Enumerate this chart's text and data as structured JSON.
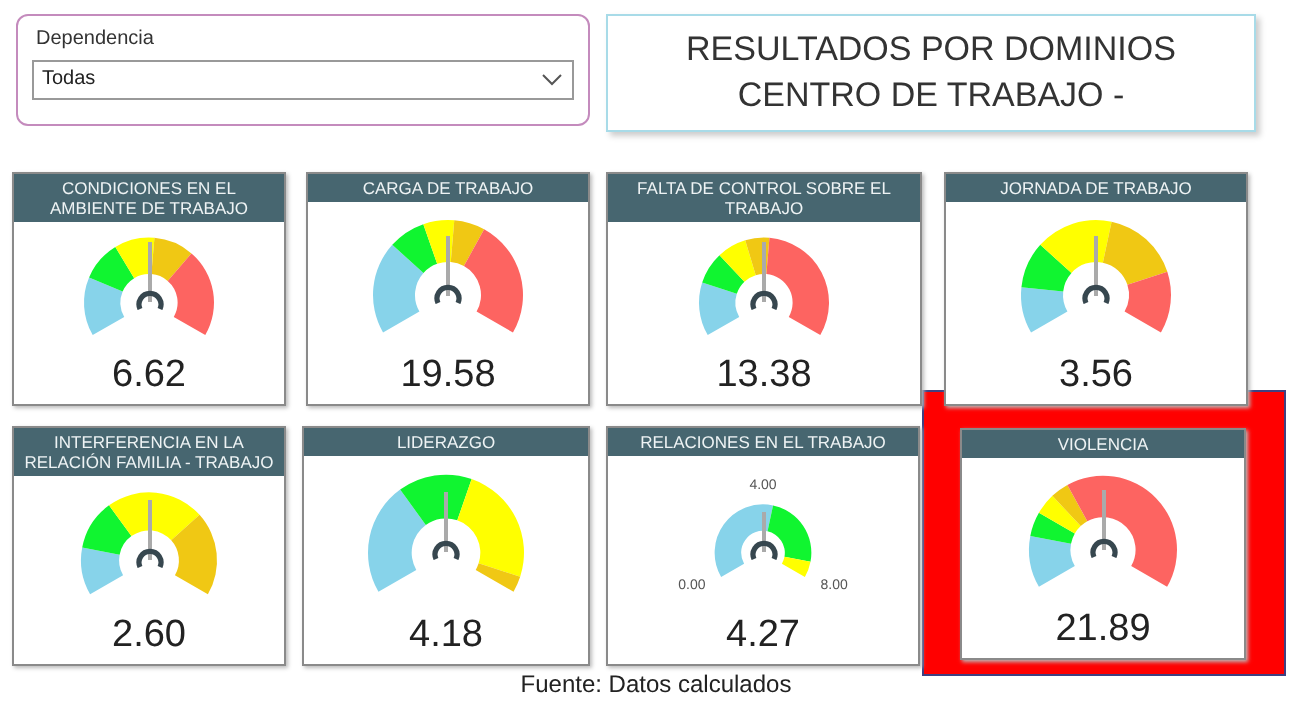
{
  "chart_data": [
    {
      "type": "other",
      "title": "RESULTADOS POR DOMINIOS CENTRO DE TRABAJO -",
      "annotations": [
        "Dependencia",
        "Todas",
        "Fuente: Datos calculados"
      ]
    },
    {
      "type": "donut",
      "title": "CONDICIONES EN EL AMBIENTE DE TRABAJO",
      "categories": [
        null,
        null,
        null,
        null,
        null
      ],
      "values": [
        22,
        15,
        15,
        15,
        33
      ],
      "colors": [
        "#87d3ea",
        "#10f530",
        "#ffff00",
        "#f0c814",
        "#fd6461"
      ],
      "annotations": [
        "6.62"
      ]
    },
    {
      "type": "donut",
      "title": "CARGA DE TRABAJO",
      "categories": [
        null,
        null,
        null,
        null,
        null
      ],
      "values": [
        30,
        12,
        10,
        10,
        38
      ],
      "colors": [
        "#87d3ea",
        "#10f530",
        "#ffff00",
        "#f0c814",
        "#fd6461"
      ],
      "annotations": [
        "19.58"
      ]
    },
    {
      "type": "donut",
      "title": "FALTA DE CONTROL SOBRE EL TRABAJO",
      "categories": [
        null,
        null,
        null,
        null,
        null
      ],
      "values": [
        20,
        12,
        11,
        9,
        48
      ],
      "colors": [
        "#87d3ea",
        "#10f530",
        "#ffff00",
        "#f0c814",
        "#fd6461"
      ],
      "annotations": [
        "13.38"
      ]
    },
    {
      "type": "donut",
      "title": "JORNADA DE TRABAJO",
      "categories": [
        null,
        null,
        null,
        null,
        null
      ],
      "values": [
        15,
        15,
        25,
        25,
        20
      ],
      "colors": [
        "#87d3ea",
        "#10f530",
        "#ffff00",
        "#f0c814",
        "#fd6461"
      ],
      "annotations": [
        "3.56"
      ]
    },
    {
      "type": "donut",
      "title": "INTERFERENCIA EN LA RELACIÓN FAMILIA - TRABAJO",
      "categories": [
        null,
        null,
        null,
        null
      ],
      "values": [
        17,
        18,
        35,
        30
      ],
      "colors": [
        "#87d3ea",
        "#10f530",
        "#ffff00",
        "#f0c814"
      ],
      "annotations": [
        "2.60"
      ]
    },
    {
      "type": "donut",
      "title": "LIDERAZGO",
      "categories": [
        null,
        null,
        null,
        null
      ],
      "values": [
        35,
        23,
        37,
        5
      ],
      "colors": [
        "#87d3ea",
        "#10f530",
        "#ffff00",
        "#f0c814"
      ],
      "annotations": [
        "4.18"
      ]
    },
    {
      "type": "donut",
      "title": "RELACIONES EN EL TRABAJO",
      "categories": [
        null,
        null,
        null
      ],
      "values": [
        55,
        37,
        8
      ],
      "colors": [
        "#87d3ea",
        "#10f530",
        "#ffff00"
      ],
      "annotations": [
        "4.27",
        "0.00",
        "4.00",
        "8.00"
      ]
    },
    {
      "type": "donut",
      "title": "VIOLENCIA",
      "categories": [
        null,
        null,
        null,
        null,
        null
      ],
      "values": [
        17,
        8,
        7,
        6,
        62
      ],
      "colors": [
        "#87d3ea",
        "#10f530",
        "#ffff00",
        "#f0c814",
        "#fd6461"
      ],
      "annotations": [
        "21.89"
      ]
    }
  ]
}
